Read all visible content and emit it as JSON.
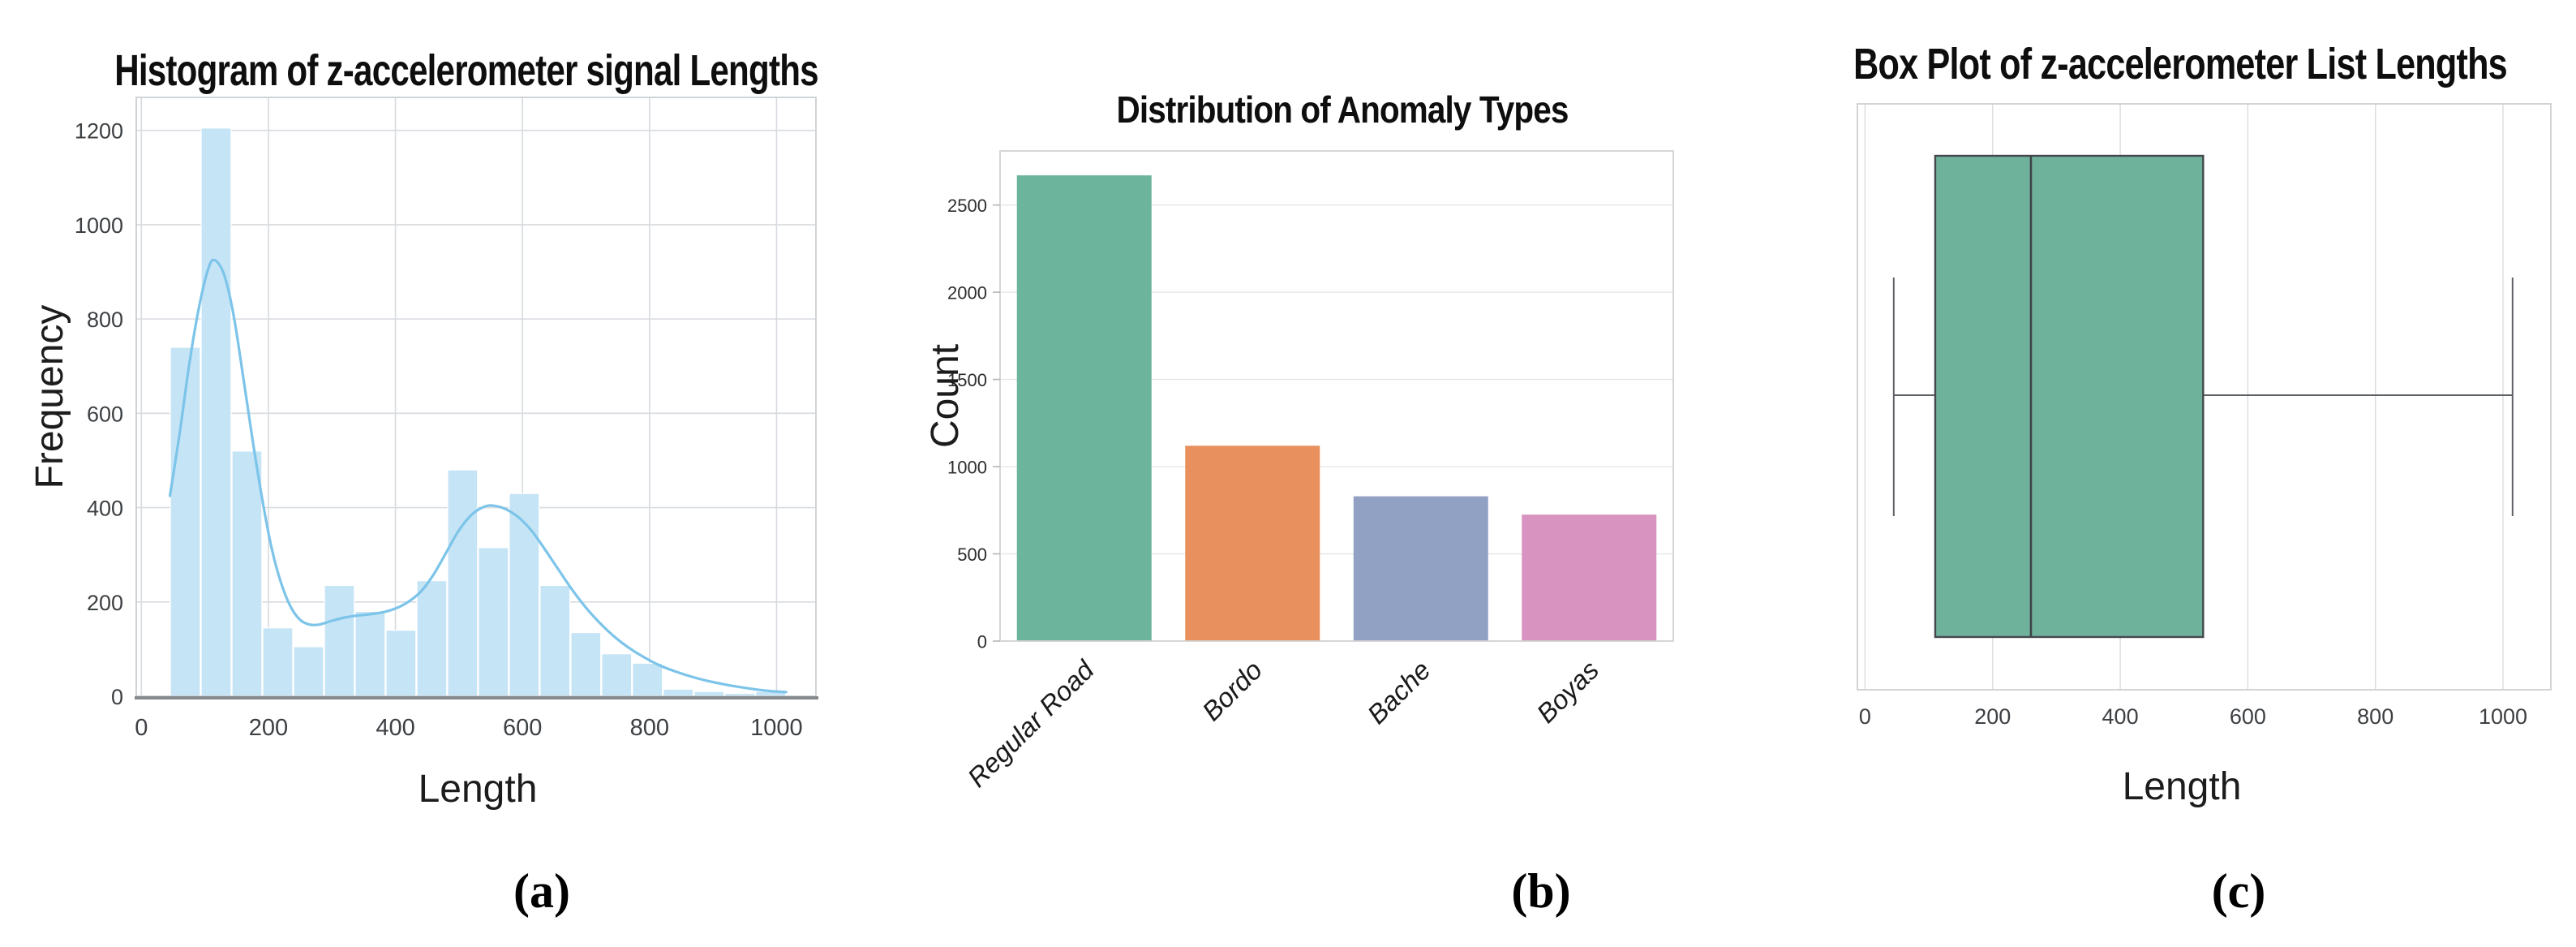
{
  "figure": {
    "background": "#ffffff",
    "panels": [
      {
        "caption": "(a)"
      },
      {
        "caption": "(b)"
      },
      {
        "caption": "(c)"
      }
    ]
  },
  "chart_data": [
    {
      "type": "bar",
      "subtype": "histogram_with_kde",
      "title": "Histogram of z-accelerometer signal Lengths",
      "xlabel": "Length",
      "ylabel": "Frequency",
      "bins": {
        "start": 45,
        "width": 48.5,
        "counts": [
          740,
          1205,
          520,
          145,
          105,
          235,
          180,
          140,
          245,
          480,
          315,
          430,
          235,
          135,
          90,
          70,
          15,
          10,
          6,
          10
        ]
      },
      "kde": [
        [
          45,
          425
        ],
        [
          60,
          555
        ],
        [
          75,
          700
        ],
        [
          90,
          820
        ],
        [
          105,
          905
        ],
        [
          115,
          925
        ],
        [
          130,
          895
        ],
        [
          145,
          810
        ],
        [
          160,
          680
        ],
        [
          175,
          545
        ],
        [
          190,
          420
        ],
        [
          205,
          315
        ],
        [
          220,
          240
        ],
        [
          235,
          190
        ],
        [
          250,
          162
        ],
        [
          265,
          152
        ],
        [
          280,
          152
        ],
        [
          300,
          160
        ],
        [
          320,
          167
        ],
        [
          340,
          171
        ],
        [
          360,
          174
        ],
        [
          380,
          178
        ],
        [
          400,
          186
        ],
        [
          420,
          200
        ],
        [
          440,
          222
        ],
        [
          460,
          258
        ],
        [
          480,
          305
        ],
        [
          500,
          352
        ],
        [
          520,
          385
        ],
        [
          540,
          402
        ],
        [
          555,
          404
        ],
        [
          575,
          396
        ],
        [
          595,
          378
        ],
        [
          615,
          350
        ],
        [
          635,
          312
        ],
        [
          655,
          272
        ],
        [
          675,
          232
        ],
        [
          695,
          196
        ],
        [
          715,
          165
        ],
        [
          735,
          138
        ],
        [
          755,
          115
        ],
        [
          775,
          96
        ],
        [
          795,
          80
        ],
        [
          815,
          66
        ],
        [
          840,
          53
        ],
        [
          865,
          42
        ],
        [
          890,
          33
        ],
        [
          915,
          26
        ],
        [
          940,
          20
        ],
        [
          965,
          15
        ],
        [
          990,
          11
        ],
        [
          1015,
          9
        ]
      ],
      "xticks": [
        0,
        200,
        400,
        600,
        800,
        1000
      ],
      "yticks": [
        0,
        200,
        400,
        600,
        800,
        1000,
        1200
      ],
      "xlim": [
        -8,
        1062
      ],
      "ylim": [
        0,
        1270
      ],
      "grid": true,
      "legend": false,
      "colors": {
        "bar": "#c5e4f5",
        "bar_edge": "#ffffff",
        "kde_line": "#7cc4e9",
        "grid": "#d7dbdf",
        "frame": "#c9cfd4",
        "axis": "#85898d",
        "tick_label": "#3d4043"
      }
    },
    {
      "type": "bar",
      "title": "Distribution of Anomaly Types",
      "xlabel": "",
      "ylabel": "Count",
      "categories": [
        "Regular Road",
        "Bordo",
        "Bache",
        "Boyas"
      ],
      "values": [
        2670,
        1120,
        830,
        725
      ],
      "bar_colors": [
        "#6cb49c",
        "#e8915f",
        "#91a1c3",
        "#d893c0"
      ],
      "yticks": [
        0,
        500,
        1000,
        1500,
        2000,
        2500
      ],
      "ylim": [
        0,
        2810
      ],
      "bar_width_fraction": 0.8,
      "xtick_rotation": 45,
      "grid": true,
      "legend": false,
      "colors": {
        "grid": "#e6e6e6",
        "frame": "#d2d2d2",
        "tick_mark": "#b5b5b5",
        "tick_label": "#2e2e2e",
        "category_label": "#1a1a1a"
      }
    },
    {
      "type": "boxplot",
      "title": "Box Plot of z-accelerometer List Lengths",
      "xlabel": "Length",
      "ylabel": "",
      "orientation": "horizontal",
      "stats": {
        "whisker_low": 45,
        "q1": 110,
        "median": 260,
        "q3": 530,
        "whisker_high": 1015
      },
      "xticks": [
        0,
        200,
        400,
        600,
        800,
        1000
      ],
      "xlim": [
        -12,
        1075
      ],
      "grid": true,
      "legend": false,
      "colors": {
        "box": "#6fb29c",
        "box_edge": "#44484c",
        "median": "#3f4347",
        "whisker": "#5d6165",
        "grid": "#dcdcdc",
        "frame": "#cfcfcf",
        "tick_label": "#3d4043"
      }
    }
  ]
}
